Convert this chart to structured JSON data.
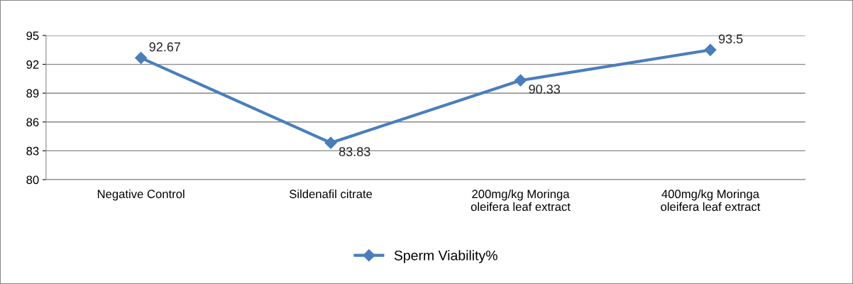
{
  "chart_data": {
    "type": "line",
    "categories": [
      "Negative Control",
      "Sildenafil citrate",
      "200mg/kg Moringa\noleifera leaf extract",
      "400mg/kg Moringa\noleifera leaf extract"
    ],
    "series": [
      {
        "name": "Sperm Viability%",
        "color": "#4a7ebb",
        "values": [
          92.67,
          83.83,
          90.33,
          93.5
        ]
      }
    ],
    "ylim": [
      80,
      95
    ],
    "yticks": [
      80,
      83,
      86,
      89,
      92,
      95
    ],
    "grid": "y",
    "legend": "bottom",
    "marker": "diamond",
    "line_style": "solid",
    "data_labels": true
  }
}
